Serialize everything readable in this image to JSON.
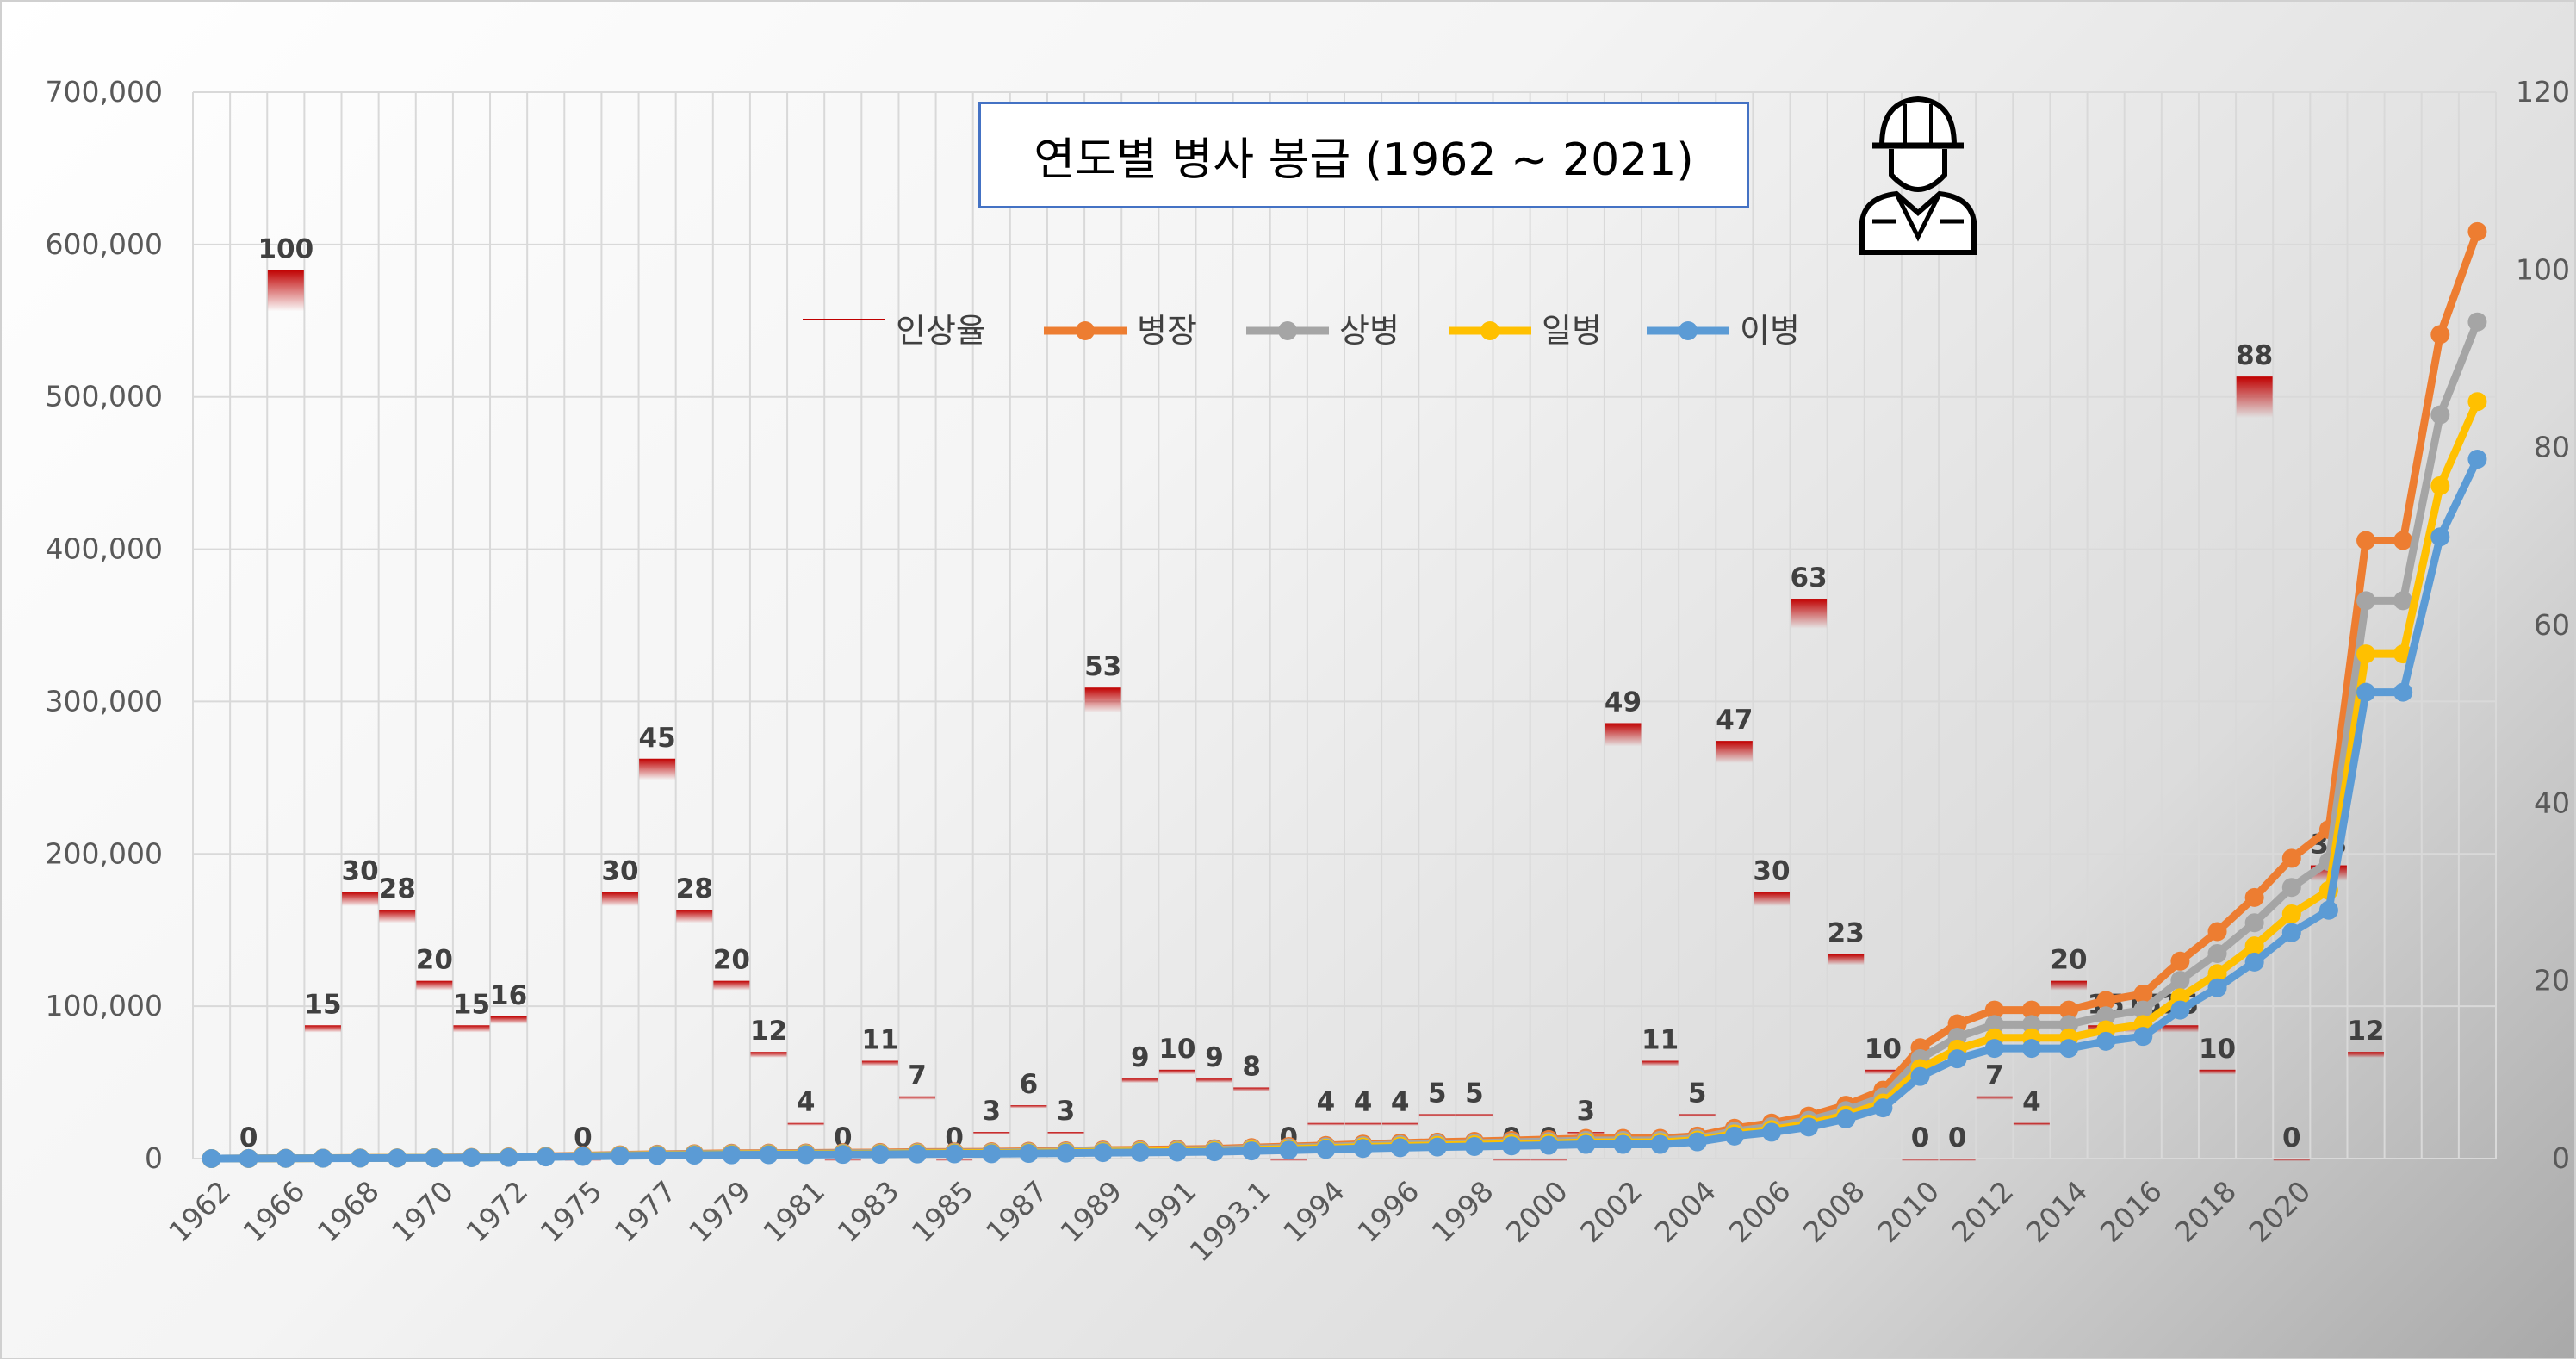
{
  "chart_data": {
    "type": "line",
    "title": "연도별 병사 봉급 (1962 ~ 2021)",
    "x_tick_labels": [
      "1962",
      "1966",
      "1968",
      "1970",
      "1972",
      "1975",
      "1977",
      "1979",
      "1981",
      "1983",
      "1985",
      "1987",
      "1989",
      "1991",
      "1993.1",
      "1994",
      "1996",
      "1998",
      "2000",
      "2002",
      "2004",
      "2006",
      "2008",
      "2010",
      "2012",
      "2014",
      "2016",
      "2018",
      "2020"
    ],
    "y_left": {
      "min": 0,
      "max": 700000,
      "ticks": [
        "0",
        "100,000",
        "200,000",
        "300,000",
        "400,000",
        "500,000",
        "600,000",
        "700,000"
      ]
    },
    "y_right": {
      "min": 0,
      "max": 120,
      "ticks": [
        "0",
        "20",
        "40",
        "60",
        "80",
        "100",
        "120"
      ]
    },
    "legend": {
      "position": "top",
      "entries": [
        "인상율",
        "병장",
        "상병",
        "일병",
        "이병"
      ]
    },
    "colors": {
      "rate": "#c00000",
      "병장": "#ed7d31",
      "상병": "#a5a5a5",
      "일병": "#ffc000",
      "이병": "#5b9bd5"
    },
    "series": [
      {
        "name": "병장",
        "values": [
          0,
          100,
          200,
          300,
          400,
          500,
          600,
          800,
          1100,
          1500,
          2000,
          2500,
          2900,
          3200,
          3500,
          3600,
          3700,
          3900,
          4000,
          4300,
          4400,
          4500,
          4800,
          5100,
          5600,
          5800,
          6100,
          6400,
          7200,
          7900,
          8600,
          9500,
          10200,
          10800,
          11300,
          11900,
          12500,
          13300,
          13300,
          13300,
          14800,
          19900,
          23300,
          27900,
          35000,
          44900,
          72800,
          88500,
          97500,
          97500,
          97500,
          103800,
          108000,
          129600,
          149000,
          171400,
          197100,
          216000,
          405700,
          405700,
          540900,
          608500
        ]
      },
      {
        "name": "상병",
        "values": [
          0,
          90,
          180,
          270,
          360,
          450,
          540,
          720,
          990,
          1350,
          1800,
          2250,
          2610,
          2880,
          3150,
          3240,
          3330,
          3510,
          3600,
          3870,
          3960,
          4050,
          4320,
          4590,
          5040,
          5220,
          5490,
          5760,
          6480,
          7110,
          7740,
          8550,
          9180,
          9720,
          10170,
          10710,
          11250,
          11970,
          11970,
          11970,
          13300,
          17900,
          21000,
          25100,
          31500,
          40400,
          65600,
          79700,
          88000,
          88000,
          88000,
          93700,
          97500,
          117000,
          134600,
          154800,
          178000,
          195000,
          366200,
          366200,
          488200,
          549200
        ]
      },
      {
        "name": "일병",
        "values": [
          0,
          80,
          160,
          240,
          320,
          400,
          480,
          640,
          880,
          1200,
          1600,
          2000,
          2320,
          2560,
          2800,
          2880,
          2960,
          3120,
          3200,
          3440,
          3520,
          3600,
          3840,
          4080,
          4480,
          4640,
          4880,
          5120,
          5760,
          6320,
          6880,
          7600,
          8160,
          8640,
          9040,
          9520,
          10000,
          10640,
          10640,
          10640,
          12100,
          16200,
          19000,
          22700,
          28500,
          36500,
          59100,
          71900,
          79300,
          79300,
          79300,
          84500,
          88000,
          105600,
          121400,
          139600,
          160600,
          176000,
          331300,
          331300,
          441700,
          496900
        ]
      },
      {
        "name": "이병",
        "values": [
          0,
          70,
          140,
          210,
          280,
          350,
          420,
          560,
          770,
          1050,
          1400,
          1750,
          2030,
          2240,
          2450,
          2520,
          2590,
          2730,
          2800,
          3010,
          3080,
          3150,
          3360,
          3570,
          3920,
          4060,
          4270,
          4480,
          5040,
          5530,
          6020,
          6650,
          7140,
          7560,
          7910,
          8330,
          8750,
          9310,
          9310,
          9310,
          11000,
          14800,
          17300,
          20700,
          26000,
          33300,
          53900,
          65500,
          72300,
          72300,
          72300,
          77000,
          80200,
          97500,
          112100,
          129000,
          148300,
          163000,
          306100,
          306100,
          408100,
          459100
        ]
      }
    ],
    "rate_series": {
      "name": "인상율",
      "values": [
        null,
        0,
        100,
        15,
        30,
        28,
        20,
        15,
        16,
        null,
        0,
        30,
        45,
        28,
        20,
        12,
        4,
        0,
        11,
        7,
        0,
        3,
        6,
        3,
        53,
        9,
        10,
        9,
        8,
        0,
        4,
        4,
        4,
        5,
        5,
        0,
        0,
        3,
        49,
        11,
        5,
        47,
        30,
        63,
        23,
        10,
        0,
        0,
        7,
        4,
        20,
        15,
        15,
        15,
        10,
        88,
        0,
        33,
        12,
        null,
        null,
        null
      ]
    }
  }
}
